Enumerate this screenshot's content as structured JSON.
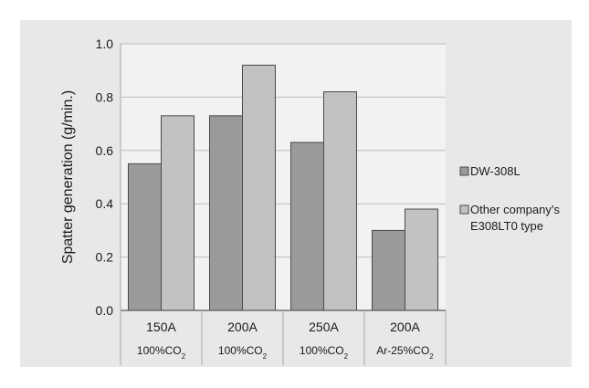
{
  "chart_data": {
    "type": "bar",
    "categories": [
      "150A",
      "200A",
      "250A",
      "200A"
    ],
    "subcategories": [
      {
        "prefix": "100%CO",
        "sub": "2"
      },
      {
        "prefix": "100%CO",
        "sub": "2"
      },
      {
        "prefix": "100%CO",
        "sub": "2"
      },
      {
        "prefix": "Ar-25%CO",
        "sub": "2"
      }
    ],
    "series": [
      {
        "name": "DW-308L",
        "values": [
          0.55,
          0.73,
          0.63,
          0.3
        ],
        "color": "#9a9a9a"
      },
      {
        "name_lines": [
          "Other company’s",
          "E308LT0 type"
        ],
        "values": [
          0.73,
          0.92,
          0.82,
          0.38
        ],
        "color": "#c2c2c2"
      }
    ],
    "ylabel": "Spatter generation (g/min.)",
    "yticks": [
      "0.0",
      "0.2",
      "0.4",
      "0.6",
      "0.8",
      "1.0"
    ],
    "ylim": [
      0,
      1.0
    ],
    "grid": true,
    "legend_position": "right",
    "colors": {
      "background": "#e8e8e8",
      "plot_area": "#f2f2f2",
      "grid": "#bcbcbc",
      "bar_outline": "#4a4a4a"
    }
  }
}
